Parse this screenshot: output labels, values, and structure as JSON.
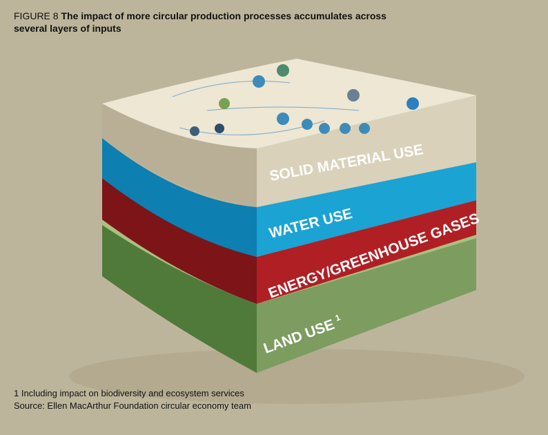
{
  "figure": {
    "label": "FIGURE 8",
    "title": "The impact of more circular production processes accumulates across several layers of inputs"
  },
  "layers": [
    {
      "label": "SOLID MATERIAL USE"
    },
    {
      "label": "WATER USE"
    },
    {
      "label": "ENERGY/GREENHOUSE GASES"
    },
    {
      "label": "LAND USE",
      "superscript": "1"
    }
  ],
  "footnotes": [
    "1 Including impact on biodiversity and ecosystem services",
    "Source: Ellen MacArthur Foundation circular economy team"
  ]
}
